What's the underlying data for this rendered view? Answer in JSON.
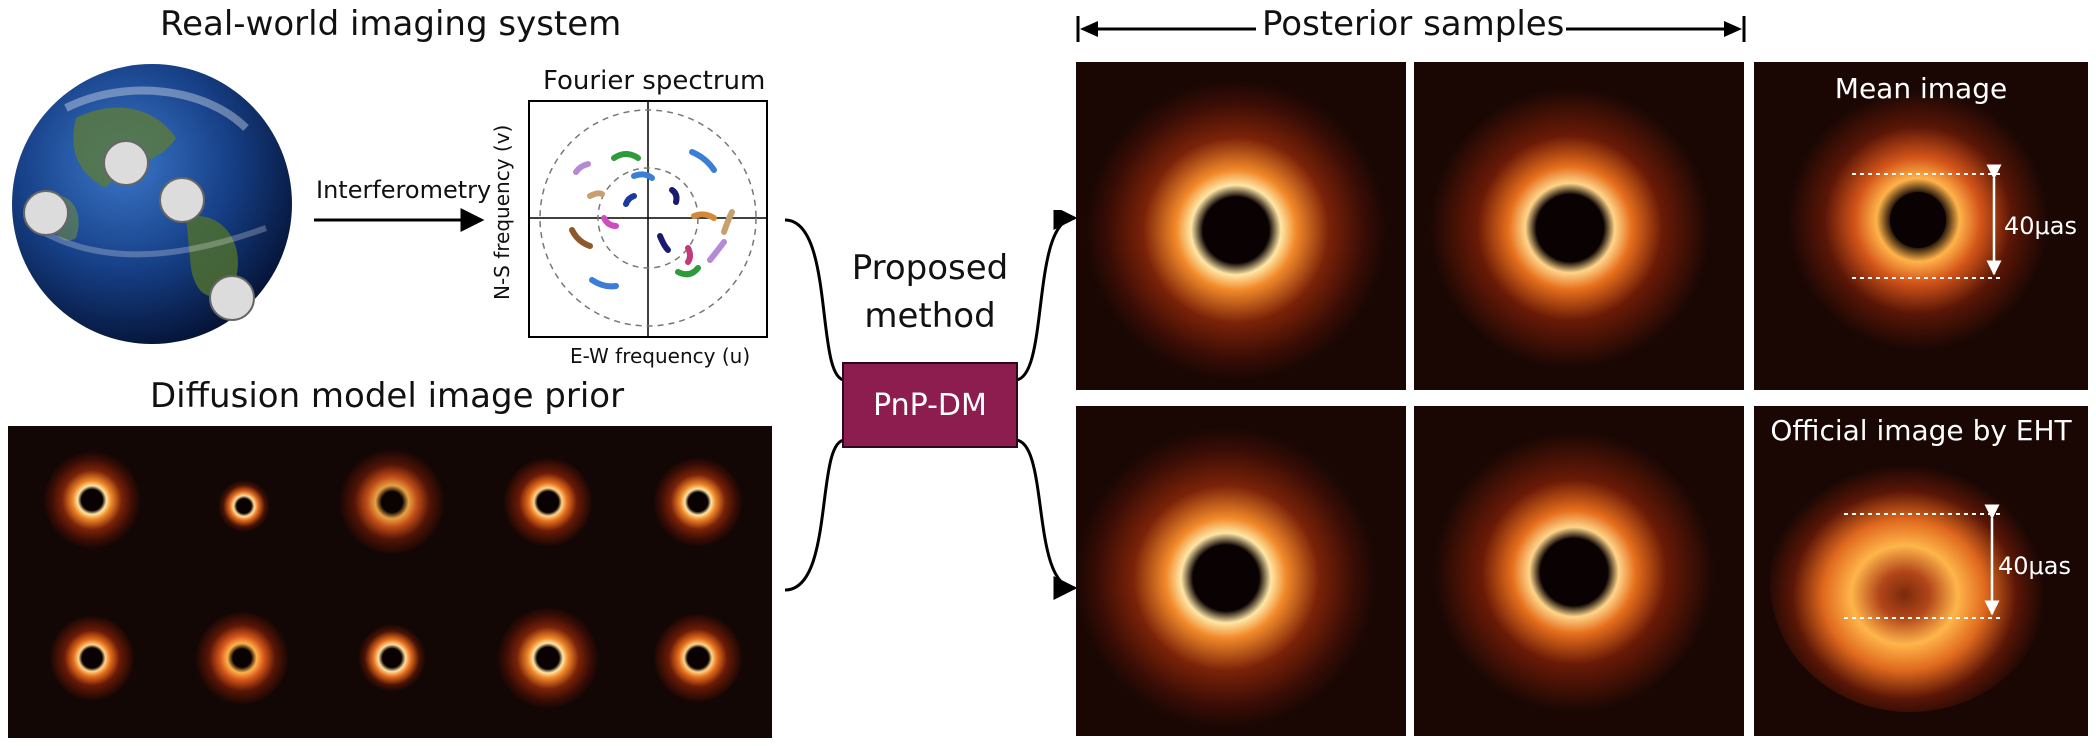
{
  "titles": {
    "real_world": "Real-world imaging system",
    "prior": "Diffusion model image prior",
    "posterior": "Posterior samples"
  },
  "labels": {
    "interferometry": "Interferometry",
    "proposed_line1": "Proposed",
    "proposed_line2": "method",
    "method_box": "PnP-DM"
  },
  "fourier": {
    "title": "Fourier spectrum",
    "xlabel": "E-W frequency (u)",
    "ylabel": "N-S frequency (v)"
  },
  "panels": {
    "mean_label": "Mean image",
    "official_label": "Official image by EHT",
    "diameter_mean": "40μas",
    "diameter_official": "40μas"
  },
  "colors": {
    "method_box": "#8e1d4f",
    "ring_core": "#ffe9b0",
    "ring_mid": "#f08a2a",
    "ring_edge": "#6e1e07",
    "background": "#1a0704"
  }
}
